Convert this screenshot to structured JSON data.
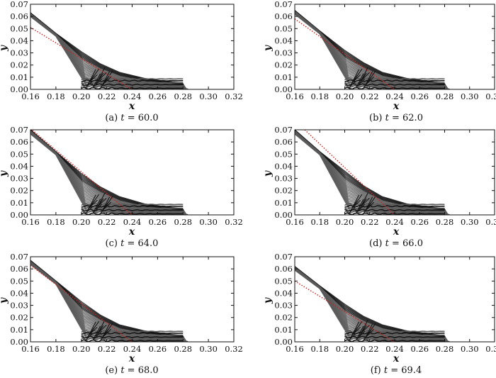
{
  "chart_data": [
    {
      "type": "line",
      "caption": "(a) t = 60.0",
      "caption_prefix": "(a) ",
      "caption_var": "t",
      "caption_value": " = 60.0",
      "xlabel": "x",
      "ylabel": "y",
      "xlim": [
        0.16,
        0.32
      ],
      "ylim": [
        0.0,
        0.07
      ],
      "xticks": [
        "0.16",
        "0.18",
        "0.20",
        "0.22",
        "0.24",
        "0.26",
        "0.28",
        "0.30",
        "0.32"
      ],
      "yticks": [
        "0.00",
        "0.01",
        "0.02",
        "0.03",
        "0.04",
        "0.05",
        "0.06",
        "0.07"
      ],
      "series": [
        {
          "style": "gray-bundle",
          "x": [
            0.16,
            0.18,
            0.2,
            0.215,
            0.23,
            0.25,
            0.28
          ],
          "y": [
            0.063,
            0.046,
            0.031,
            0.021,
            0.014,
            0.009,
            0.005
          ]
        },
        {
          "style": "red-dotted",
          "x": [
            0.16,
            0.24
          ],
          "y": [
            0.051,
            0.0
          ]
        }
      ]
    },
    {
      "type": "line",
      "caption": "(b) t = 62.0",
      "caption_prefix": "(b) ",
      "caption_var": "t",
      "caption_value": " = 62.0",
      "xlabel": "x",
      "ylabel": "y",
      "xlim": [
        0.16,
        0.32
      ],
      "ylim": [
        0.0,
        0.07
      ],
      "xticks": [
        "0.16",
        "0.18",
        "0.20",
        "0.22",
        "0.24",
        "0.26",
        "0.28",
        "0.30",
        "0.32"
      ],
      "yticks": [
        "0.00",
        "0.01",
        "0.02",
        "0.03",
        "0.04",
        "0.05",
        "0.06",
        "0.07"
      ],
      "series": [
        {
          "style": "gray-bundle",
          "x": [
            0.16,
            0.18,
            0.2,
            0.215,
            0.23,
            0.25,
            0.28
          ],
          "y": [
            0.065,
            0.048,
            0.032,
            0.022,
            0.014,
            0.009,
            0.005
          ]
        },
        {
          "style": "red-dotted",
          "x": [
            0.16,
            0.24
          ],
          "y": [
            0.058,
            0.0
          ]
        }
      ]
    },
    {
      "type": "line",
      "caption": "(c) t = 64.0",
      "caption_prefix": "(c) ",
      "caption_var": "t",
      "caption_value": " = 64.0",
      "xlabel": "x",
      "ylabel": "y",
      "xlim": [
        0.16,
        0.32
      ],
      "ylim": [
        0.0,
        0.07
      ],
      "xticks": [
        "0.16",
        "0.18",
        "0.20",
        "0.22",
        "0.24",
        "0.26",
        "0.28",
        "0.30",
        "0.32"
      ],
      "yticks": [
        "0.00",
        "0.01",
        "0.02",
        "0.03",
        "0.04",
        "0.05",
        "0.06",
        "0.07"
      ],
      "series": [
        {
          "style": "gray-bundle",
          "x": [
            0.16,
            0.18,
            0.2,
            0.215,
            0.23,
            0.25,
            0.28
          ],
          "y": [
            0.07,
            0.052,
            0.034,
            0.023,
            0.015,
            0.009,
            0.005
          ]
        },
        {
          "style": "red-dotted",
          "x": [
            0.16,
            0.24
          ],
          "y": [
            0.071,
            0.0
          ]
        }
      ]
    },
    {
      "type": "line",
      "caption": "(d) t = 66.0",
      "caption_prefix": "(d) ",
      "caption_var": "t",
      "caption_value": " = 66.0",
      "xlabel": "x",
      "ylabel": "y",
      "xlim": [
        0.16,
        0.32
      ],
      "ylim": [
        0.0,
        0.07
      ],
      "xticks": [
        "0.16",
        "0.18",
        "0.20",
        "0.22",
        "0.24",
        "0.26",
        "0.28",
        "0.30",
        "0.32"
      ],
      "yticks": [
        "0.00",
        "0.01",
        "0.02",
        "0.03",
        "0.04",
        "0.05",
        "0.06",
        "0.07"
      ],
      "series": [
        {
          "style": "gray-bundle",
          "x": [
            0.16,
            0.18,
            0.2,
            0.215,
            0.23,
            0.25,
            0.28
          ],
          "y": [
            0.07,
            0.052,
            0.036,
            0.024,
            0.015,
            0.009,
            0.005
          ]
        },
        {
          "style": "red-dotted",
          "x": [
            0.168,
            0.24
          ],
          "y": [
            0.07,
            0.0
          ]
        }
      ]
    },
    {
      "type": "line",
      "caption": "(e) t = 68.0",
      "caption_prefix": "(e) ",
      "caption_var": "t",
      "caption_value": " = 68.0",
      "xlabel": "x",
      "ylabel": "y",
      "xlim": [
        0.16,
        0.32
      ],
      "ylim": [
        0.0,
        0.07
      ],
      "xticks": [
        "0.16",
        "0.18",
        "0.20",
        "0.22",
        "0.24",
        "0.26",
        "0.28",
        "0.30",
        "0.32"
      ],
      "yticks": [
        "0.00",
        "0.01",
        "0.02",
        "0.03",
        "0.04",
        "0.05",
        "0.06",
        "0.07"
      ],
      "series": [
        {
          "style": "gray-bundle",
          "x": [
            0.16,
            0.18,
            0.2,
            0.215,
            0.23,
            0.25,
            0.28
          ],
          "y": [
            0.067,
            0.05,
            0.033,
            0.022,
            0.014,
            0.009,
            0.005
          ]
        },
        {
          "style": "red-dotted",
          "x": [
            0.16,
            0.24
          ],
          "y": [
            0.063,
            0.0
          ]
        }
      ]
    },
    {
      "type": "line",
      "caption": "(f) t = 69.4",
      "caption_prefix": "(f) ",
      "caption_var": "t",
      "caption_value": " = 69.4",
      "xlabel": "x",
      "ylabel": "y",
      "xlim": [
        0.16,
        0.32
      ],
      "ylim": [
        0.0,
        0.07
      ],
      "xticks": [
        "0.16",
        "0.18",
        "0.20",
        "0.22",
        "0.24",
        "0.26",
        "0.28",
        "0.30",
        "0.32"
      ],
      "yticks": [
        "0.00",
        "0.01",
        "0.02",
        "0.03",
        "0.04",
        "0.05",
        "0.06",
        "0.07"
      ],
      "series": [
        {
          "style": "gray-bundle",
          "x": [
            0.16,
            0.18,
            0.2,
            0.215,
            0.23,
            0.25,
            0.28
          ],
          "y": [
            0.062,
            0.046,
            0.031,
            0.021,
            0.014,
            0.009,
            0.005
          ]
        },
        {
          "style": "red-dotted",
          "x": [
            0.16,
            0.24
          ],
          "y": [
            0.05,
            0.0
          ]
        }
      ]
    }
  ],
  "colors": {
    "bundle": "#5a5a5a",
    "bundle_dark": "#141414",
    "reference": "#d0201a",
    "axis": "#111111"
  }
}
